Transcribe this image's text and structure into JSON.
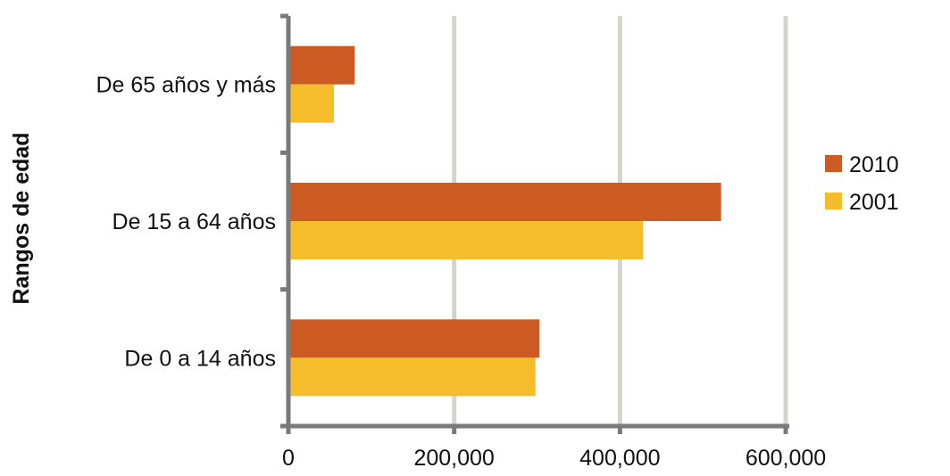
{
  "chart_data": {
    "type": "bar",
    "orientation": "horizontal",
    "title": "",
    "xlabel": "",
    "ylabel": "Rangos de edad",
    "categories": [
      "De 0 a 14 años",
      "De 15 a 64 años",
      "De 65 años y más"
    ],
    "series": [
      {
        "name": "2010",
        "values": [
          303000,
          522000,
          80000
        ],
        "color": "#cc5a23"
      },
      {
        "name": "2001",
        "values": [
          298000,
          428000,
          55000
        ],
        "color": "#f5bd2c"
      }
    ],
    "xlim": [
      0,
      600000
    ],
    "xticks": [
      0,
      200000,
      400000,
      600000
    ],
    "xtick_labels": [
      "0",
      "200,000",
      "400,000",
      "600,000"
    ],
    "grid": "vertical",
    "legend": "right"
  }
}
